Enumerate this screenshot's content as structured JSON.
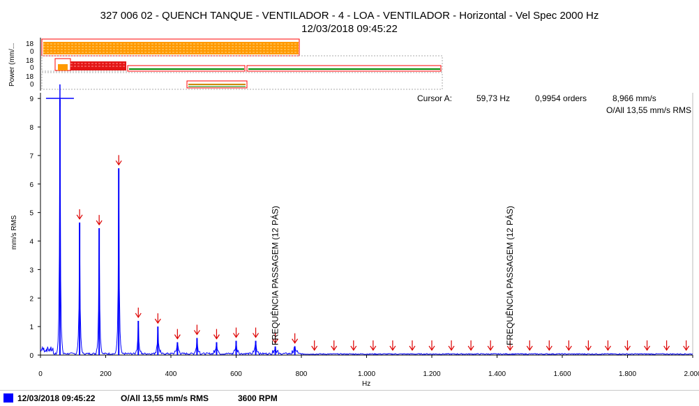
{
  "header": {
    "title": "327 006 02 - QUENCH TANQUE - VENTILADOR - 4 - LOA - VENTILADOR - Horizontal - Vel Spec 2000 Hz",
    "date": "12/03/2018 09:45:22"
  },
  "trend": {
    "ylabel": "Power (mm/...",
    "tick_top": "18",
    "tick_bottom": "0"
  },
  "cursor": {
    "label": "Cursor A:",
    "freq": "59,73 Hz",
    "orders": "0,9954 orders",
    "amp": "8,966 mm/s",
    "overall": "O/All 13,55 mm/s RMS"
  },
  "footer": {
    "date": "12/03/2018 09:45:22",
    "overall": "O/All 13,55 mm/s RMS",
    "rpm": "3600 RPM",
    "series_color": "#0000ff"
  },
  "chart_data": {
    "type": "line",
    "title": "327 006 02 - QUENCH TANQUE - VENTILADOR - 4 - LOA - VENTILADOR - Horizontal - Vel Spec 2000 Hz",
    "xlabel": "Hz",
    "ylabel": "mm/s RMS",
    "xlim": [
      0,
      2000
    ],
    "ylim": [
      0,
      9.2
    ],
    "xticks": [
      0,
      200,
      400,
      600,
      800,
      1000,
      1200,
      1400,
      1600,
      1800,
      2000
    ],
    "xtick_labels": [
      "0",
      "200",
      "400",
      "600",
      "800",
      "1.000",
      "1.200",
      "1.400",
      "1.600",
      "1.800",
      "2.000"
    ],
    "yticks": [
      0,
      1,
      2,
      3,
      4,
      5,
      6,
      7,
      8,
      9
    ],
    "ytick_labels": [
      "0",
      "1",
      "2",
      "3",
      "4",
      "5",
      "6",
      "7",
      "8",
      "9"
    ],
    "line_color": "#0000ff",
    "peaks": [
      {
        "x": 59.73,
        "y": 8.97
      },
      {
        "x": 120,
        "y": 4.65
      },
      {
        "x": 180,
        "y": 4.45
      },
      {
        "x": 240,
        "y": 6.55
      },
      {
        "x": 300,
        "y": 1.2
      },
      {
        "x": 360,
        "y": 1.0
      },
      {
        "x": 420,
        "y": 0.45
      },
      {
        "x": 480,
        "y": 0.6
      },
      {
        "x": 540,
        "y": 0.45
      },
      {
        "x": 600,
        "y": 0.5
      },
      {
        "x": 660,
        "y": 0.5
      },
      {
        "x": 720,
        "y": 0.3
      },
      {
        "x": 780,
        "y": 0.3
      }
    ],
    "harmonic_markers": [
      120,
      180,
      240,
      300,
      360,
      420,
      480,
      540,
      600,
      660,
      720,
      780,
      840,
      900,
      960,
      1020,
      1080,
      1140,
      1200,
      1260,
      1320,
      1380,
      1440,
      1500,
      1560,
      1620,
      1680,
      1740,
      1800,
      1860,
      1920,
      1980
    ],
    "annotations": [
      {
        "x": 720,
        "text": "FREQUÊNCIA PASSAGEM (12 PÁS)"
      },
      {
        "x": 1440,
        "text": "FREQUÊNCIA PASSAGEM (12 PÁS)"
      }
    ],
    "cursor_x": 59.73,
    "cursor_y": 8.966
  }
}
